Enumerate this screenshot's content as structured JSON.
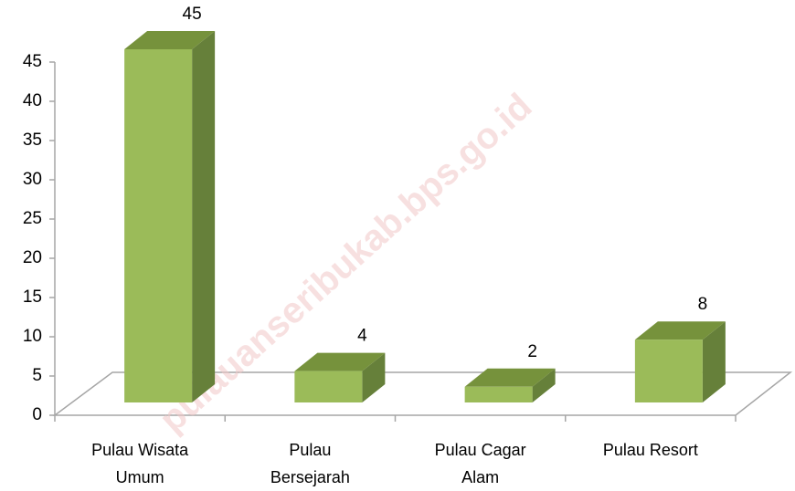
{
  "chart_data": {
    "type": "bar3d",
    "categories": [
      "Pulau Wisata Umum",
      "Pulau Bersejarah",
      "Pulau Cagar Alam",
      "Pulau Resort"
    ],
    "values": [
      45,
      4,
      2,
      8
    ],
    "color": "#9bbb59",
    "ylim": [
      0,
      45
    ],
    "yticks": [
      0,
      5,
      10,
      15,
      20,
      25,
      30,
      35,
      40,
      45
    ],
    "grid": false,
    "watermark": "pulauanseribukab.bps.go.id"
  }
}
